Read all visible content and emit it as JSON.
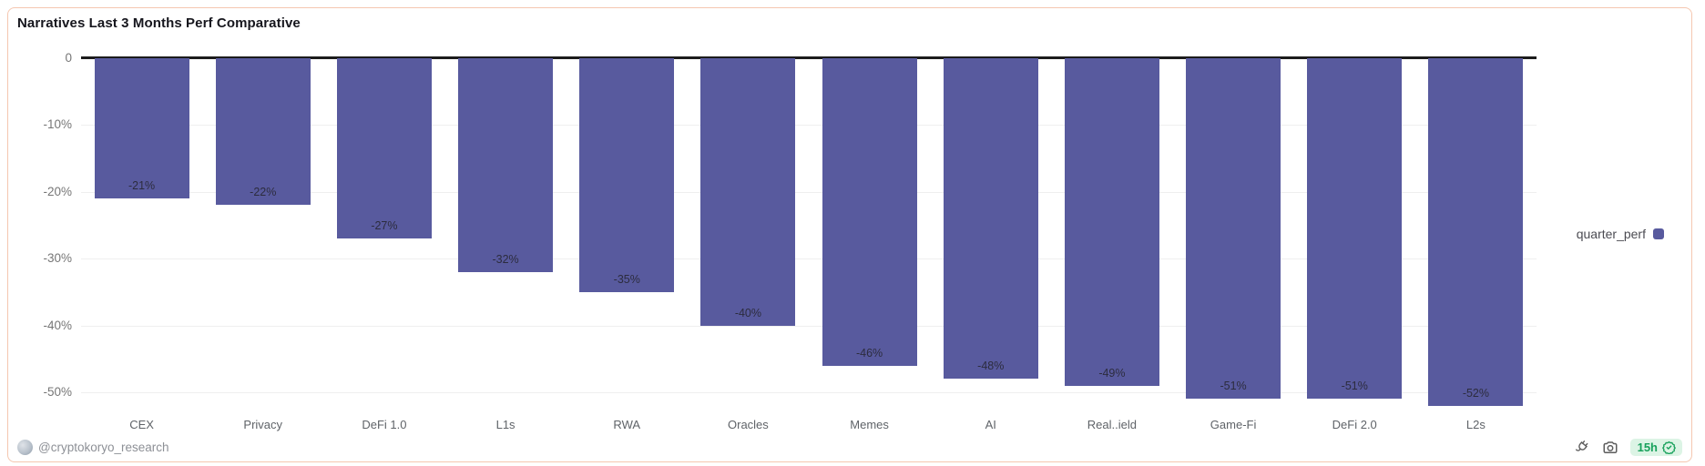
{
  "card": {
    "title": "Narratives Last 3 Months Perf Comparative",
    "border_color": "#f5c7b0",
    "legend": {
      "label": "quarter_perf",
      "swatch_color": "#585a9e"
    },
    "footer": {
      "author_handle": "@cryptokoryo_research",
      "age_badge": {
        "text": "15h",
        "text_color": "#17a15b",
        "bg_color": "#dcf4e5"
      }
    }
  },
  "chart_data": {
    "type": "bar",
    "title": "Narratives Last 3 Months Perf Comparative",
    "categories": [
      "CEX",
      "Privacy",
      "DeFi 1.0",
      "L1s",
      "RWA",
      "Oracles",
      "Memes",
      "AI",
      "Real..ield",
      "Game-Fi",
      "DeFi 2.0",
      "L2s"
    ],
    "series": [
      {
        "name": "quarter_perf",
        "color": "#585a9e",
        "values": [
          -21,
          -22,
          -27,
          -32,
          -35,
          -40,
          -46,
          -48,
          -49,
          -51,
          -51,
          -52
        ]
      }
    ],
    "data_labels": [
      "-21%",
      "-22%",
      "-27%",
      "-32%",
      "-35%",
      "-40%",
      "-46%",
      "-48%",
      "-49%",
      "-51%",
      "-51%",
      "-52%"
    ],
    "xlabel": "",
    "ylabel": "",
    "yticks": [
      0,
      -10,
      -20,
      -30,
      -40,
      -50
    ],
    "ytick_labels": [
      "0",
      "-10%",
      "-20%",
      "-30%",
      "-40%",
      "-50%"
    ],
    "ylim": [
      -54.5,
      0
    ],
    "grid": true,
    "legend_position": "right-middle"
  }
}
